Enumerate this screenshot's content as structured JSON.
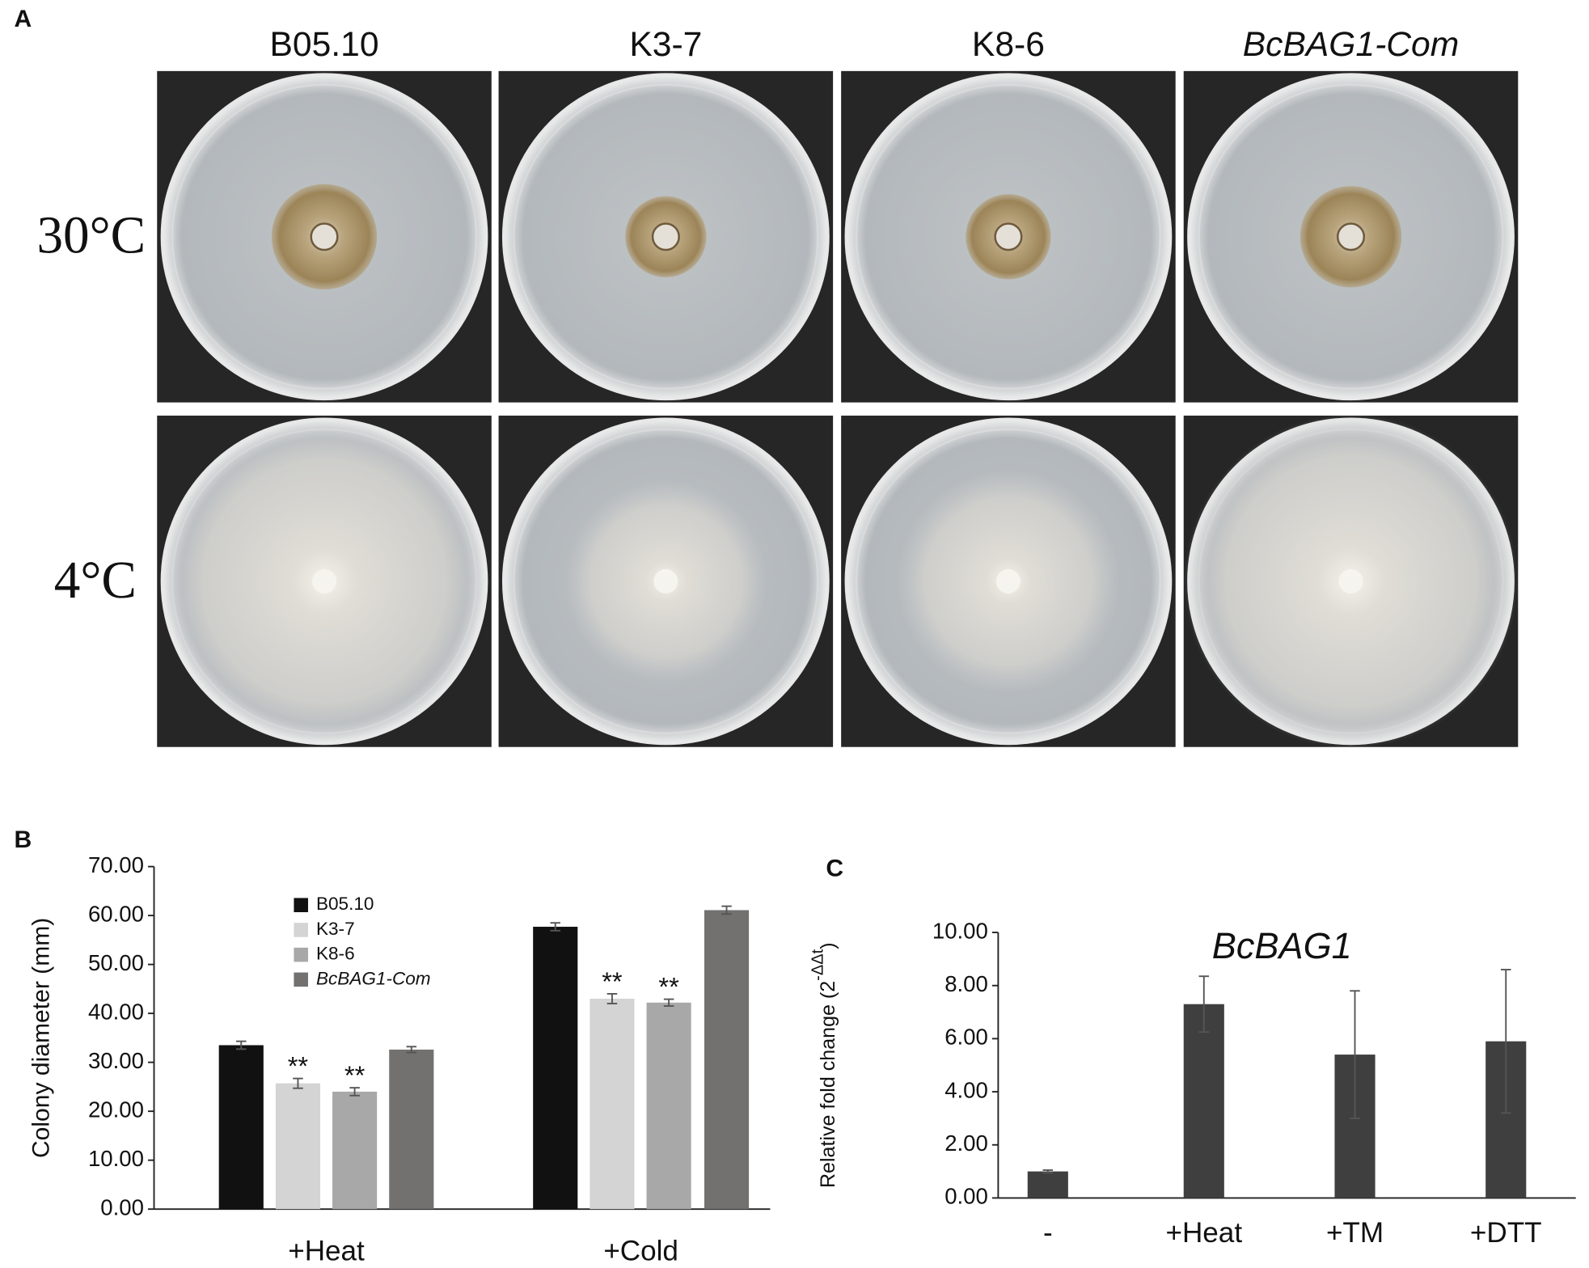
{
  "panel_a": {
    "label": "A",
    "columns": [
      "B05.10",
      "K3-7",
      "K8-6",
      "BcBAG1-Com"
    ],
    "rows": [
      "30°C",
      "4°C"
    ]
  },
  "chart_data": [
    {
      "type": "bar",
      "panel_label": "B",
      "ylabel": "Colony  diameter (mm)",
      "categories": [
        "+Heat",
        "+Cold"
      ],
      "series": [
        {
          "name": "B05.10",
          "color": "#111111",
          "values": [
            33.5,
            57.7
          ],
          "errors": [
            0.8,
            0.8
          ]
        },
        {
          "name": "K3-7",
          "color": "#d4d4d4",
          "values": [
            25.7,
            43.0
          ],
          "errors": [
            1.0,
            1.0
          ],
          "significance": [
            "**",
            "**"
          ]
        },
        {
          "name": "K8-6",
          "color": "#a8a8a8",
          "values": [
            24.0,
            42.2
          ],
          "errors": [
            0.8,
            0.7
          ],
          "significance": [
            "**",
            "**"
          ]
        },
        {
          "name": "BcBAG1-Com",
          "color": "#737070",
          "values": [
            32.6,
            61.1
          ],
          "errors": [
            0.6,
            0.8
          ]
        }
      ],
      "ylim": [
        0,
        70
      ],
      "yticks": [
        {
          "value": 0,
          "label": "0.00"
        },
        {
          "value": 10,
          "label": "10.00"
        },
        {
          "value": 20,
          "label": "20.00"
        },
        {
          "value": 30,
          "label": "30.00"
        },
        {
          "value": 40,
          "label": "40.00"
        },
        {
          "value": 50,
          "label": "50.00"
        },
        {
          "value": 60,
          "label": "60.00"
        },
        {
          "value": 70,
          "label": "70.00"
        }
      ],
      "legend": "upper left",
      "grid": false
    },
    {
      "type": "bar",
      "panel_label": "C",
      "title": "BcBAG1",
      "ylabel": "Relative fold change (2",
      "ylabel_superscript": "-ΔΔt",
      "ylabel_suffix": ")",
      "categories": [
        "-",
        "+Heat",
        "+TM",
        "+DTT"
      ],
      "series": [
        {
          "color": "#3f3f3f",
          "values": [
            1.0,
            7.3,
            5.4,
            5.9
          ],
          "errors": [
            0.05,
            1.05,
            2.4,
            2.7
          ]
        }
      ],
      "ylim": [
        0,
        10
      ],
      "yticks": [
        {
          "value": 0,
          "label": "0.00"
        },
        {
          "value": 2,
          "label": "2.00"
        },
        {
          "value": 4,
          "label": "4.00"
        },
        {
          "value": 6,
          "label": "6.00"
        },
        {
          "value": 8,
          "label": "8.00"
        },
        {
          "value": 10,
          "label": "10.00"
        }
      ],
      "grid": false
    }
  ]
}
